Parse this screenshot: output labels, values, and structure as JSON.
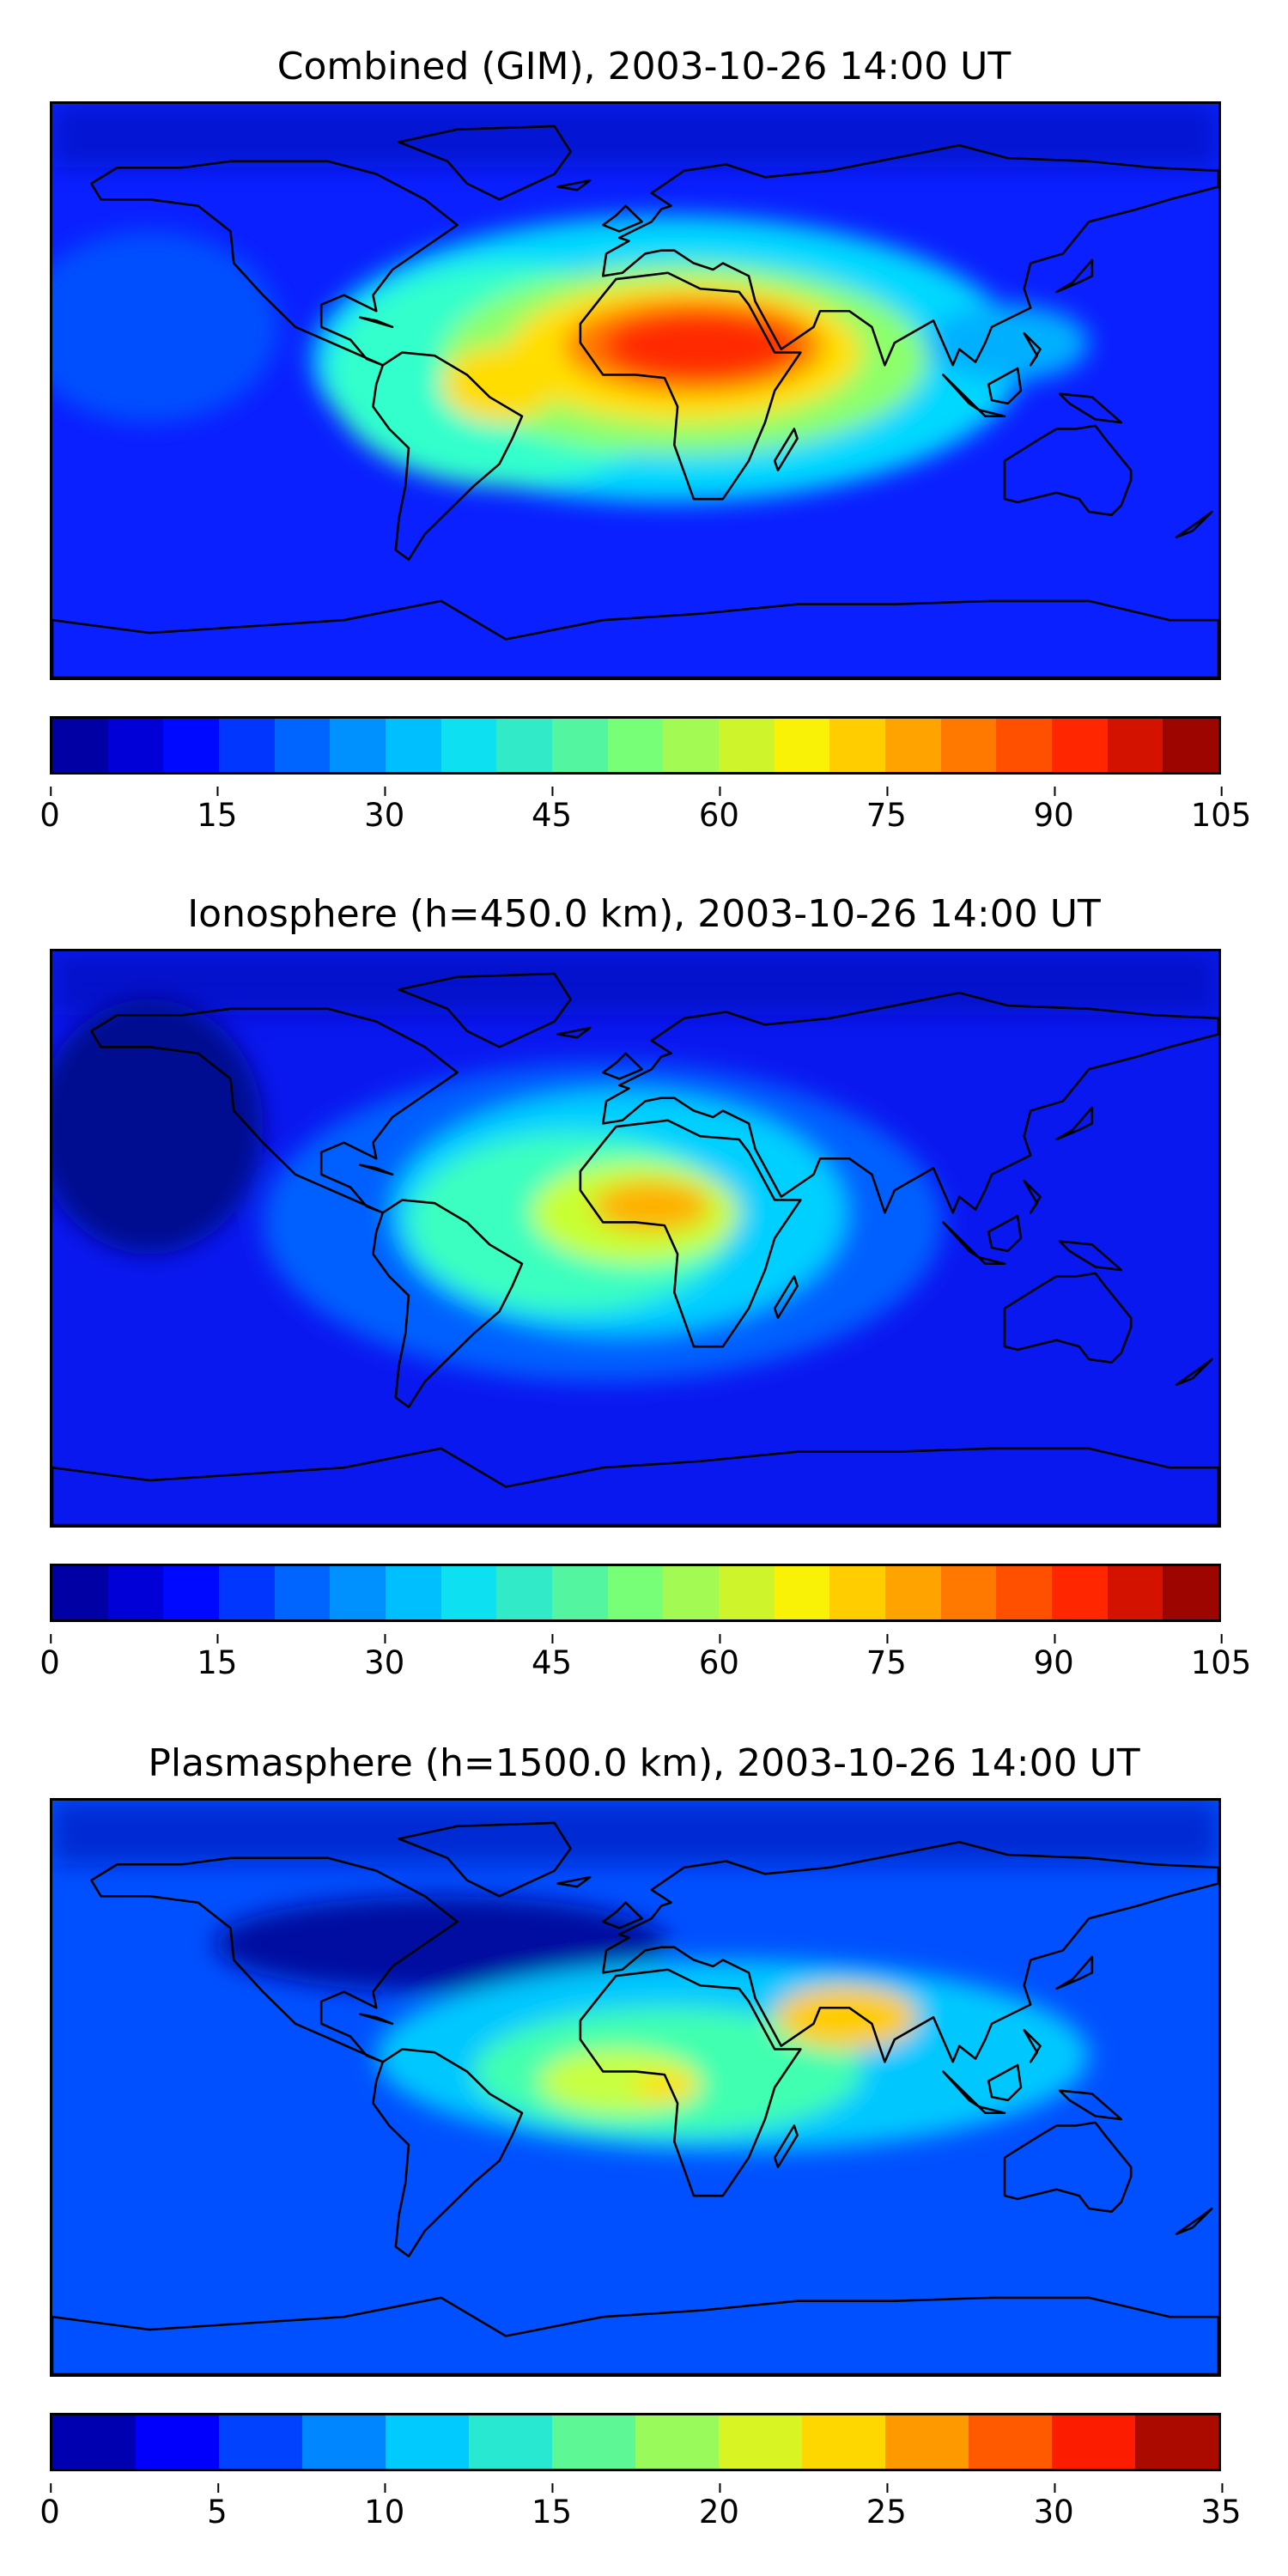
{
  "panels": [
    {
      "title": "Combined (GIM), 2003-10-26 14:00 UT",
      "colorbar_ticks": [
        "0",
        "15",
        "30",
        "45",
        "60",
        "75",
        "90",
        "105"
      ],
      "colorbar_range": [
        0,
        105
      ],
      "colorbar_levels": 21,
      "background": "#0a20ff",
      "blobs": [
        {
          "lon": 10,
          "lat": 10,
          "rx": 110,
          "ry": 45,
          "color": "#00d8ff"
        },
        {
          "lon": -40,
          "lat": 5,
          "rx": 55,
          "ry": 35,
          "color": "#33ffcc"
        },
        {
          "lon": 15,
          "lat": 10,
          "rx": 75,
          "ry": 30,
          "color": "#8cff6a"
        },
        {
          "lon": 15,
          "lat": 12,
          "rx": 55,
          "ry": 22,
          "color": "#ffe000"
        },
        {
          "lon": -42,
          "lat": 2,
          "rx": 18,
          "ry": 12,
          "color": "#ffdd00"
        },
        {
          "lon": 18,
          "lat": 14,
          "rx": 40,
          "ry": 15,
          "color": "#ff7a00"
        },
        {
          "lon": 20,
          "lat": 14,
          "rx": 30,
          "ry": 11,
          "color": "#ff2a00"
        },
        {
          "lon": 115,
          "lat": 15,
          "rx": 25,
          "ry": 12,
          "color": "#00b0ff"
        },
        {
          "lon": -150,
          "lat": 20,
          "rx": 40,
          "ry": 30,
          "color": "#0050ff"
        }
      ]
    },
    {
      "title": "Ionosphere  (h=450.0 km), 2003-10-26 14:00 UT",
      "colorbar_ticks": [
        "0",
        "15",
        "30",
        "45",
        "60",
        "75",
        "90",
        "105"
      ],
      "colorbar_range": [
        0,
        105
      ],
      "colorbar_levels": 21,
      "background": "#0a18f0",
      "blobs": [
        {
          "lon": -10,
          "lat": 5,
          "rx": 105,
          "ry": 50,
          "color": "#0060ff"
        },
        {
          "lon": -5,
          "lat": 8,
          "rx": 70,
          "ry": 38,
          "color": "#00d0ff"
        },
        {
          "lon": -20,
          "lat": 5,
          "rx": 50,
          "ry": 28,
          "color": "#3affc0"
        },
        {
          "lon": 0,
          "lat": 8,
          "rx": 32,
          "ry": 16,
          "color": "#c8ff30"
        },
        {
          "lon": 5,
          "lat": 10,
          "rx": 18,
          "ry": 8,
          "color": "#ffb000"
        },
        {
          "lon": -150,
          "lat": 35,
          "rx": 35,
          "ry": 40,
          "color": "#000a90"
        }
      ]
    },
    {
      "title": "Plasmasphere (h=1500.0 km), 2003-10-26 14:00 UT",
      "colorbar_ticks": [
        "0",
        "5",
        "10",
        "15",
        "20",
        "25",
        "30",
        "35"
      ],
      "colorbar_range": [
        0,
        35
      ],
      "colorbar_levels": 14,
      "background": "#0050ff",
      "blobs": [
        {
          "lon": -60,
          "lat": 45,
          "rx": 70,
          "ry": 15,
          "color": "#0010a0"
        },
        {
          "lon": 30,
          "lat": 10,
          "rx": 110,
          "ry": 30,
          "color": "#00c8ff"
        },
        {
          "lon": 10,
          "lat": 5,
          "rx": 60,
          "ry": 20,
          "color": "#40ffb0"
        },
        {
          "lon": -5,
          "lat": 2,
          "rx": 25,
          "ry": 10,
          "color": "#c8ff40"
        },
        {
          "lon": 65,
          "lat": 22,
          "rx": 22,
          "ry": 10,
          "color": "#ffcc00"
        },
        {
          "lon": 10,
          "lat": 0,
          "rx": 10,
          "ry": 5,
          "color": "#ffe000"
        }
      ]
    }
  ]
}
